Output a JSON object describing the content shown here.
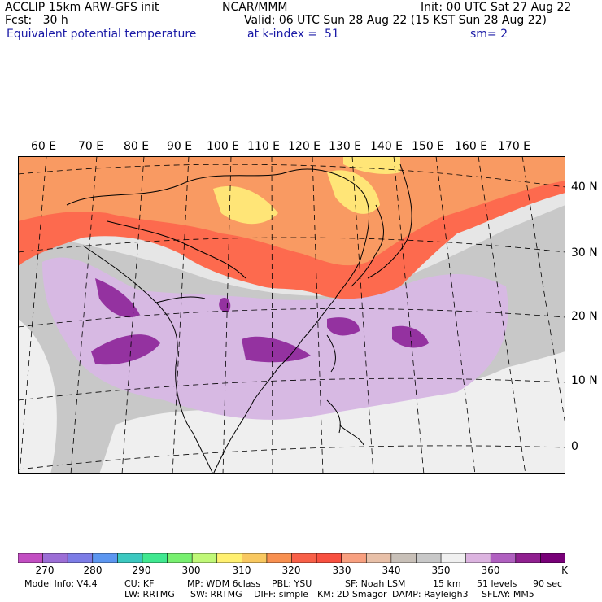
{
  "header": {
    "line1_left": "ACCLIP 15km ARW-GFS init",
    "line1_mid": "NCAR/MMM",
    "line1_right": "Init: 00 UTC Sat 27 Aug 22",
    "line2_left": "Fcst:   30 h",
    "line2_right": "Valid: 06 UTC Sun 28 Aug 22 (15 KST Sun 28 Aug 22)",
    "line3_left": "Equivalent potential temperature",
    "line3_mid": "at k-index =  51",
    "line3_right": "sm= 2"
  },
  "map": {
    "lon_labels": [
      "60 E",
      "70 E",
      "80 E",
      "90 E",
      "100 E",
      "110 E",
      "120 E",
      "130 E",
      "140 E",
      "150 E",
      "160 E",
      "170 E"
    ],
    "lat_labels": [
      "40 N",
      "30 N",
      "20 N",
      "10 N",
      "0"
    ],
    "colors": {
      "high": "#fd6a4e",
      "warm": "#f99a62",
      "hot": "#ffe577",
      "moist": "#d7b9e3",
      "deep": "#9432a0",
      "dry": "#c8c8c8",
      "light": "#ececec"
    }
  },
  "colorbar": {
    "unit": "K",
    "ticks": [
      "270",
      "280",
      "290",
      "300",
      "310",
      "320",
      "330",
      "340",
      "350",
      "360"
    ],
    "colors": [
      "#c24ec2",
      "#9c6ed6",
      "#7c7ce6",
      "#5c96f0",
      "#3cc8c0",
      "#40e890",
      "#78f070",
      "#c0f878",
      "#fff070",
      "#f8c860",
      "#f89050",
      "#f86048",
      "#f85040",
      "#f8a080",
      "#e8c0a8",
      "#c8c0b8",
      "#c8c8c8",
      "#f0f0f0",
      "#dcb4e0",
      "#b060c0",
      "#902090",
      "#780078"
    ]
  },
  "footer": {
    "model_info": "Model Info: V4.4",
    "cu": "CU: KF",
    "mp": "MP: WDM 6class",
    "pbl": "PBL: YSU",
    "sf": "SF: Noah LSM",
    "res": "15 km",
    "levels": "51 levels",
    "dt": "90 sec",
    "lw": "LW: RRTMG",
    "sw": "SW: RRTMG",
    "diff": "DIFF: simple",
    "km": "KM: 2D Smagor",
    "damp": "DAMP: Rayleigh3",
    "sflay": "SFLAY: MM5"
  }
}
